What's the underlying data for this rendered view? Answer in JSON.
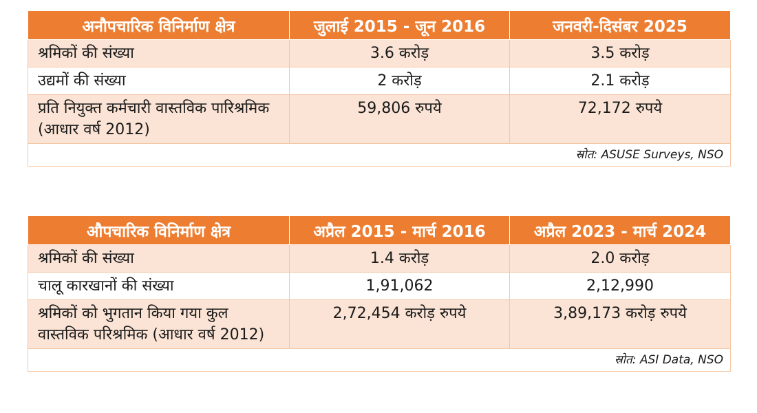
{
  "table1": {
    "headers": [
      "अनौपचारिक विनिर्माण क्षेत्र",
      "जुलाई 2015 - जून 2016",
      "जनवरी-दिसंबर 2025"
    ],
    "rows": [
      [
        "श्रमिकों की संख्या",
        "3.6 करोड़",
        "3.5 करोड़"
      ],
      [
        "उद्यमों की संख्या",
        "2 करोड़",
        "2.1 करोड़"
      ],
      [
        "प्रति नियुक्त कर्मचारी वास्तविक पारिश्रमिक (आधार वर्ष 2012)",
        "59,806 रुपये",
        "72,172 रुपये"
      ]
    ],
    "source": "स्रोत: ASUSE Surveys, NSO"
  },
  "table2": {
    "headers": [
      "औपचारिक विनिर्माण क्षेत्र",
      "अप्रैल 2015 - मार्च 2016",
      "अप्रैल 2023 - मार्च 2024"
    ],
    "rows": [
      [
        "श्रमिकों की संख्या",
        "1.4 करोड़",
        "2.0 करोड़"
      ],
      [
        "चालू कारखानों की संख्या",
        "1,91,062",
        "2,12,990"
      ],
      [
        "श्रमिकों को भुगतान किया गया कुल वास्तविक परिश्रमिक (आधार वर्ष 2012)",
        "2,72,454 करोड़ रुपये",
        "3,89,173 करोड़ रुपये"
      ]
    ],
    "source": "स्रोत: ASI Data, NSO"
  },
  "colors": {
    "header_bg": "#ed7d31",
    "header_text": "#ffffff",
    "row_shade": "#fbe4d5",
    "border": "#f4c7a6"
  }
}
